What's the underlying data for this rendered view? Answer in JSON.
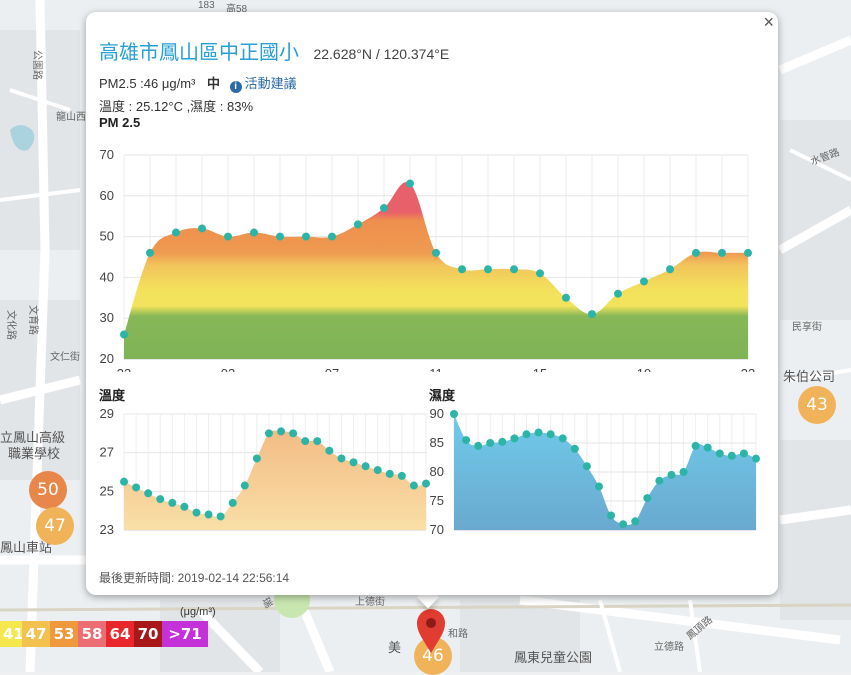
{
  "popup": {
    "site_name": "高雄市鳳山區中正國小",
    "coords": "22.628°N / 120.374°E",
    "pm25_reading": "PM2.5 :46 μg/m³",
    "level": "中",
    "advice_link": "活動建議",
    "temp_humidity": "溫度 : 25.12°C ,濕度 : 83%",
    "close_label": "×",
    "updated": "最後更新時間: 2019-02-14 22:56:14"
  },
  "charts": {
    "pm_title": "PM 2.5",
    "temp_title": "溫度",
    "humidity_title": "濕度"
  },
  "chart_data": [
    {
      "type": "area",
      "title": "PM 2.5",
      "ylim": [
        20,
        70
      ],
      "yticks": [
        20,
        30,
        40,
        50,
        60,
        70
      ],
      "xticks": [
        "23",
        "03",
        "07",
        "11",
        "15",
        "19",
        "23"
      ],
      "values": [
        26,
        46,
        51,
        52,
        50,
        51,
        50,
        50,
        50,
        53,
        57,
        63,
        46,
        42,
        42,
        42,
        41,
        35,
        31,
        36,
        39,
        42,
        46,
        46,
        46
      ]
    },
    {
      "type": "area",
      "title": "溫度",
      "ylim": [
        23,
        29
      ],
      "yticks": [
        23,
        25,
        27,
        29
      ],
      "values": [
        25.5,
        25.2,
        24.9,
        24.6,
        24.4,
        24.2,
        23.9,
        23.8,
        23.7,
        24.4,
        25.3,
        26.7,
        28.0,
        28.1,
        28.0,
        27.6,
        27.6,
        27.1,
        26.7,
        26.5,
        26.3,
        26.1,
        25.9,
        25.8,
        25.3,
        25.4
      ]
    },
    {
      "type": "area",
      "title": "濕度",
      "ylim": [
        70,
        90
      ],
      "yticks": [
        70,
        75,
        80,
        85,
        90
      ],
      "values": [
        90,
        85.5,
        84.5,
        85,
        85.2,
        85.8,
        86.5,
        86.8,
        86.5,
        85.8,
        84,
        81,
        77.5,
        72.5,
        71,
        71.5,
        75.5,
        78.5,
        79.5,
        80,
        84.5,
        84.2,
        83.2,
        82.8,
        83.2,
        82.3
      ]
    }
  ],
  "map": {
    "clusters": [
      {
        "value": "50",
        "color": "#e8874a"
      },
      {
        "value": "47",
        "color": "#f0b35a"
      },
      {
        "value": "43",
        "color": "#f0b35a"
      },
      {
        "value": "46",
        "color": "#f0b35a"
      }
    ],
    "legend": [
      {
        "label": "41",
        "color": "#f5e84e"
      },
      {
        "label": "47",
        "color": "#f2c14e"
      },
      {
        "label": "53",
        "color": "#ee9a3c"
      },
      {
        "label": "58",
        "color": "#ec6d73"
      },
      {
        "label": "64",
        "color": "#e8262c"
      },
      {
        "label": "70",
        "color": "#a81818"
      },
      {
        "label": ">71",
        "color": "#c431d8"
      }
    ],
    "legend_unit": "(μg/m³)",
    "labels": {
      "l1": "183",
      "l2": "高58",
      "l3": "公園路",
      "l4": "龍山西",
      "l5": "文育路",
      "l6": "文化路",
      "l7": "文仁街",
      "l8": "朱伯公司",
      "l9": "鳳山車站",
      "l10": "立鳳山高級",
      "l11": "職業學校",
      "l12": "鳳東兒童公園",
      "l13": "美",
      "l14": "光",
      "l15": "和路",
      "l16": "上德街",
      "l17": "立德路",
      "l18": "鳳頂路",
      "l19": "民享街",
      "l20": "水管路",
      "l21": "瑞"
    }
  }
}
